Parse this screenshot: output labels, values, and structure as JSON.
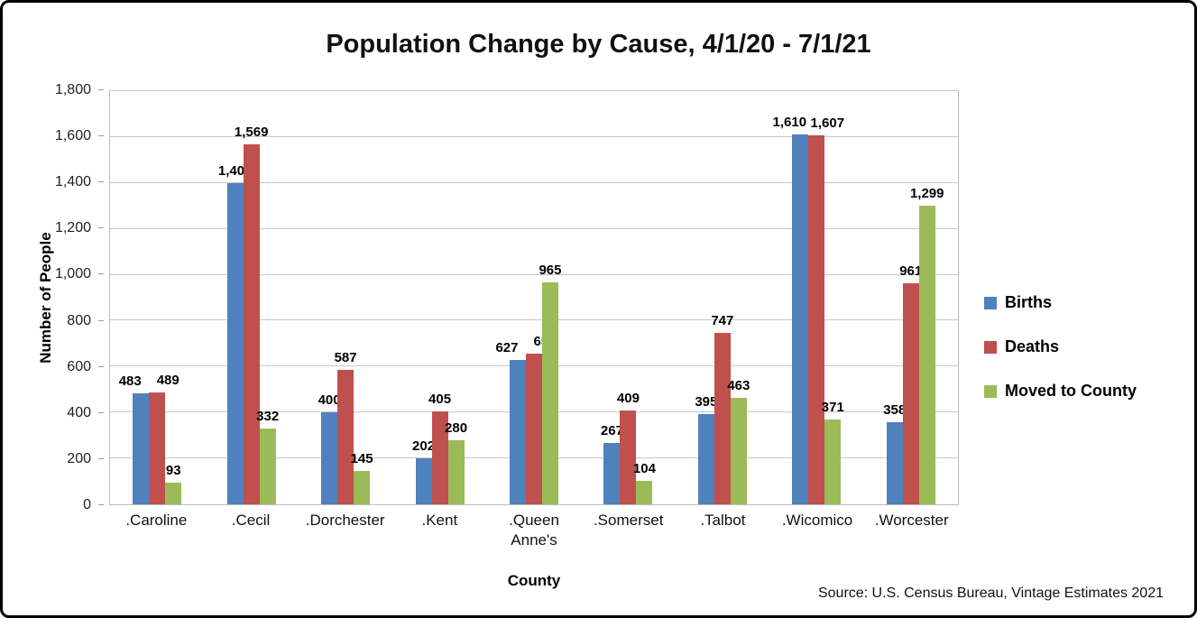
{
  "title": "Population Change by Cause, 4/1/20 - 7/1/21",
  "chart_data": {
    "type": "bar",
    "categories": [
      ".Caroline",
      ".Cecil",
      ".Dorchester",
      ".Kent",
      ".Queen Anne's",
      ".Somerset",
      ".Talbot",
      ".Wicomico",
      ".Worcester"
    ],
    "series": [
      {
        "name": "Births",
        "color": "#4F81BD",
        "values": [
          483,
          1400,
          400,
          202,
          627,
          267,
          395,
          1610,
          358
        ]
      },
      {
        "name": "Deaths",
        "color": "#C0504D",
        "values": [
          489,
          1569,
          587,
          405,
          658,
          409,
          747,
          1607,
          961
        ]
      },
      {
        "name": "Moved to County",
        "color": "#9BBB59",
        "values": [
          93,
          332,
          145,
          280,
          965,
          104,
          463,
          371,
          1299
        ]
      }
    ],
    "xlabel": "County",
    "ylabel": "Number of People",
    "ylim": [
      0,
      1800
    ],
    "ytick_step": 200,
    "grid": true,
    "legend_position": "right",
    "data_labels": true,
    "source": "Source: U.S. Census Bureau, Vintage Estimates 2021"
  }
}
